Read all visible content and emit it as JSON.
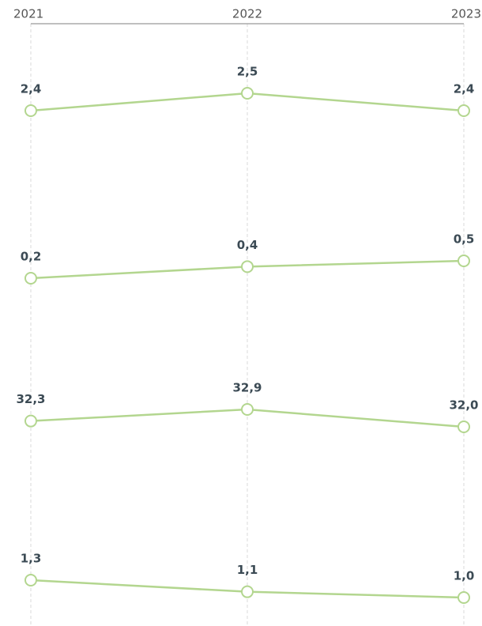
{
  "chart_data": {
    "type": "line",
    "categories": [
      "2021",
      "2022",
      "2023"
    ],
    "grid": true,
    "series": [
      {
        "color": "#b3d68f",
        "values": [
          2.4,
          2.5,
          2.4
        ],
        "value_labels": [
          "2,4",
          "2,5",
          "2,4"
        ]
      },
      {
        "color": "#b3d68f",
        "values": [
          0.2,
          0.4,
          0.5
        ],
        "value_labels": [
          "0,2",
          "0,4",
          "0,5"
        ]
      },
      {
        "color": "#b3d68f",
        "values": [
          32.3,
          32.9,
          32.0
        ],
        "value_labels": [
          "32,3",
          "32,9",
          "32,0"
        ]
      },
      {
        "color": "#b3d68f",
        "values": [
          1.3,
          1.1,
          1.0
        ],
        "value_labels": [
          "1,3",
          "1,1",
          "1,0"
        ]
      }
    ]
  }
}
